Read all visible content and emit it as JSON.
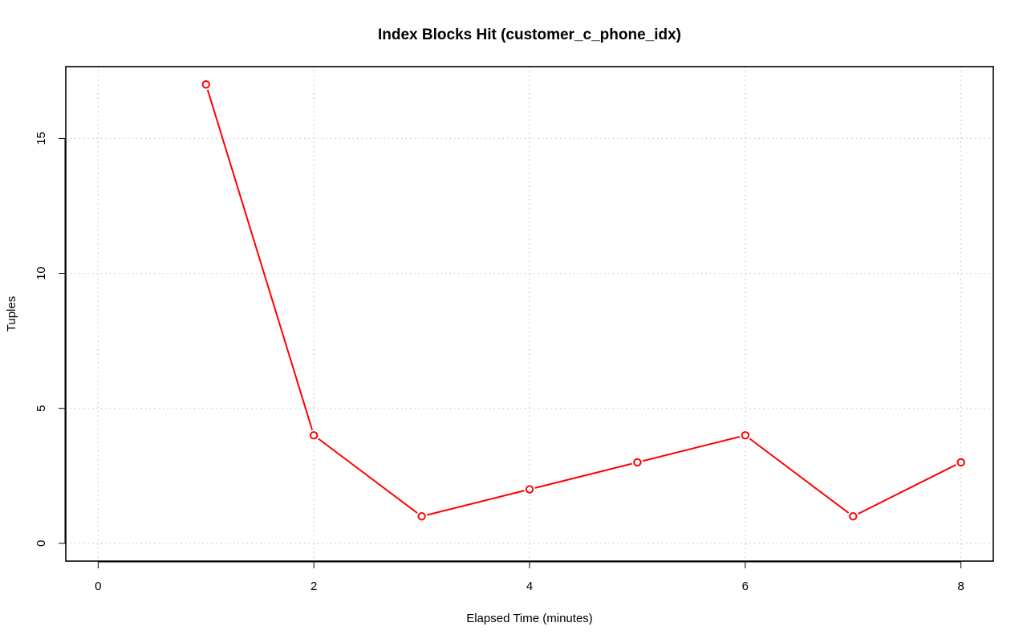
{
  "chart_data": {
    "type": "line",
    "title": "Index Blocks Hit (customer_c_phone_idx)",
    "xlabel": "Elapsed Time (minutes)",
    "ylabel": "Tuples",
    "xlim": [
      -0.3,
      8.3
    ],
    "ylim": [
      -0.66,
      17.66
    ],
    "x_ticks": [
      0,
      2,
      4,
      6,
      8
    ],
    "y_ticks": [
      0,
      5,
      10,
      15
    ],
    "grid": true,
    "series": [
      {
        "color": "#ff0000",
        "x": [
          1,
          2,
          3,
          4,
          5,
          6,
          7,
          8
        ],
        "y": [
          17,
          4,
          1,
          2,
          3,
          4,
          1,
          3
        ]
      }
    ]
  }
}
